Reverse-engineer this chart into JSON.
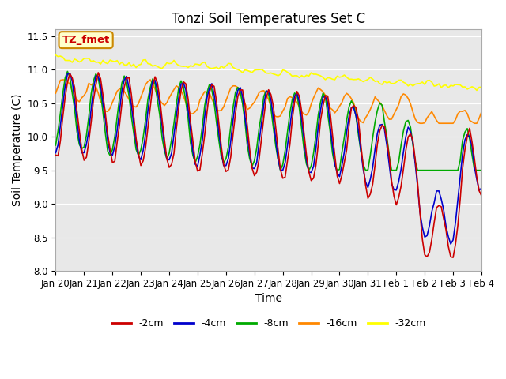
{
  "title": "Tonzi Soil Temperatures Set C",
  "xlabel": "Time",
  "ylabel": "Soil Temperature (C)",
  "ylim": [
    8.0,
    11.6
  ],
  "xlim": [
    0,
    360
  ],
  "x_tick_labels": [
    "Jan 20",
    "Jan 21",
    "Jan 22",
    "Jan 23",
    "Jan 24",
    "Jan 25",
    "Jan 26",
    "Jan 27",
    "Jan 28",
    "Jan 29",
    "Jan 30",
    "Jan 31",
    "Feb 1",
    "Feb 2",
    "Feb 3",
    "Feb 4"
  ],
  "x_tick_positions": [
    0,
    24,
    48,
    72,
    96,
    120,
    144,
    168,
    192,
    216,
    240,
    264,
    288,
    312,
    336,
    360
  ],
  "ytick_vals": [
    8.0,
    8.5,
    9.0,
    9.5,
    10.0,
    10.5,
    11.0,
    11.5
  ],
  "legend_labels": [
    "-2cm",
    "-4cm",
    "-8cm",
    "-16cm",
    "-32cm"
  ],
  "legend_colors": [
    "#cc0000",
    "#0000cc",
    "#00aa00",
    "#ff8800",
    "#ffff00"
  ],
  "annotation_text": "TZ_fmet",
  "annotation_bg": "#ffffcc",
  "annotation_border": "#cc8800",
  "annotation_text_color": "#cc0000",
  "plot_bg": "#e8e8e8",
  "title_fontsize": 12,
  "axis_label_fontsize": 10,
  "tick_label_fontsize": 8.5
}
